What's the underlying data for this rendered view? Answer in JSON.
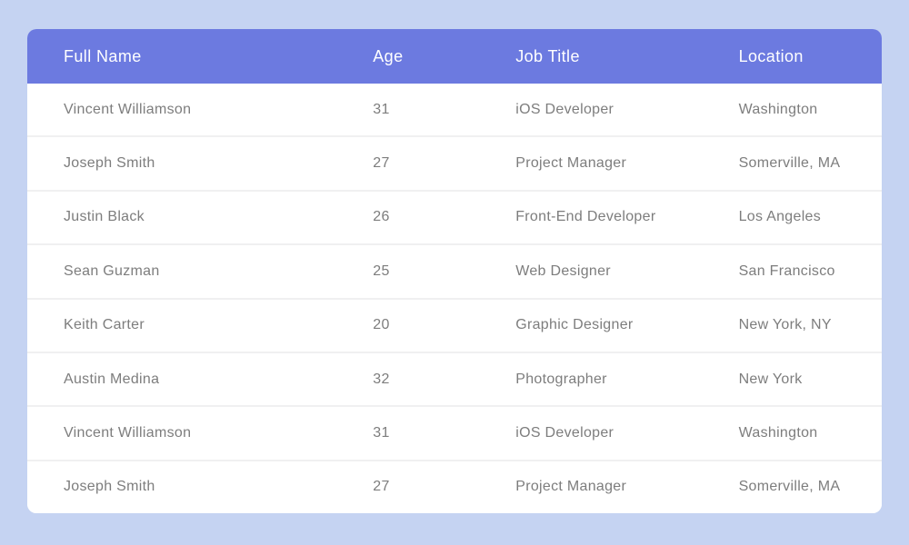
{
  "colors": {
    "page_background": "#c5d3f2",
    "header_background": "#6c7ae0",
    "header_text": "#ffffff",
    "row_background": "#ffffff",
    "row_text": "#7d7d7d",
    "row_divider": "#f0f0f1"
  },
  "table": {
    "header": {
      "columns": [
        "Full Name",
        "Age",
        "Job Title",
        "Location"
      ]
    },
    "rows": [
      {
        "full_name": "Vincent Williamson",
        "age": "31",
        "job_title": "iOS Developer",
        "location": "Washington"
      },
      {
        "full_name": "Joseph Smith",
        "age": "27",
        "job_title": "Project Manager",
        "location": "Somerville, MA"
      },
      {
        "full_name": "Justin Black",
        "age": "26",
        "job_title": "Front-End Developer",
        "location": "Los Angeles"
      },
      {
        "full_name": "Sean Guzman",
        "age": "25",
        "job_title": "Web Designer",
        "location": "San Francisco"
      },
      {
        "full_name": "Keith Carter",
        "age": "20",
        "job_title": "Graphic Designer",
        "location": "New York, NY"
      },
      {
        "full_name": "Austin Medina",
        "age": "32",
        "job_title": "Photographer",
        "location": "New York"
      },
      {
        "full_name": "Vincent Williamson",
        "age": "31",
        "job_title": "iOS Developer",
        "location": "Washington"
      },
      {
        "full_name": "Joseph Smith",
        "age": "27",
        "job_title": "Project Manager",
        "location": "Somerville, MA"
      }
    ]
  }
}
